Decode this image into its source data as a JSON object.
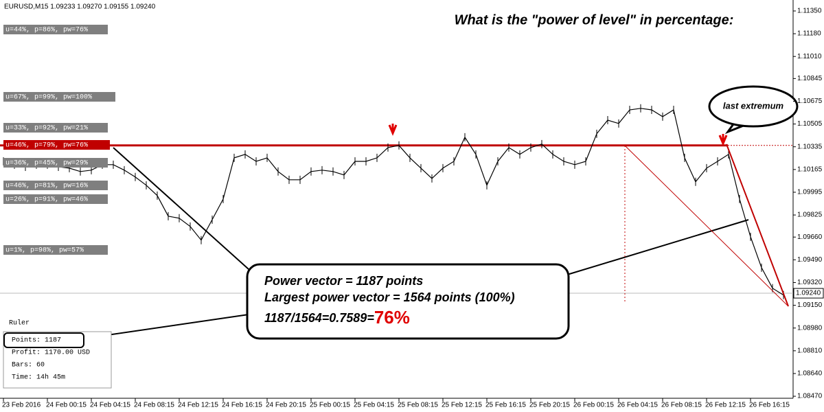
{
  "chart_data": {
    "type": "line",
    "title": "EURUSD,M15  1.09233 1.09270 1.09155 1.09240",
    "heading": "What is the \"power of level\" in percentage:",
    "categories": [
      "23 Feb 2016",
      null,
      null,
      null,
      "24 Feb 00:15",
      null,
      null,
      null,
      "24 Feb 04:15",
      null,
      null,
      null,
      "24 Feb 08:15",
      null,
      null,
      null,
      "24 Feb 12:15",
      null,
      null,
      null,
      "24 Feb 16:15",
      null,
      null,
      null,
      "24 Feb 20:15",
      null,
      null,
      null,
      "25 Feb 00:15",
      null,
      null,
      null,
      "25 Feb 04:15",
      null,
      null,
      null,
      "25 Feb 08:15",
      null,
      null,
      null,
      "25 Feb 12:15",
      null,
      null,
      null,
      "25 Feb 16:15",
      null,
      null,
      null,
      "25 Feb 20:15",
      null,
      null,
      null,
      "26 Feb 00:15",
      null,
      null,
      null,
      "26 Feb 04:15",
      null,
      null,
      null,
      "26 Feb 08:15",
      null,
      null,
      null,
      "26 Feb 12:15",
      null,
      null,
      null,
      "26 Feb 16:15",
      null,
      null,
      null
    ],
    "values": [
      1.10226,
      1.10201,
      1.10185,
      1.10201,
      1.10201,
      1.10185,
      1.10175,
      1.1015,
      1.1016,
      1.10201,
      1.10201,
      1.1016,
      1.10109,
      1.10047,
      1.0997,
      1.09816,
      1.09801,
      1.09739,
      1.09637,
      1.0979,
      1.09944,
      1.10252,
      1.10278,
      1.10226,
      1.10252,
      1.1015,
      1.10088,
      1.10088,
      1.1015,
      1.1016,
      1.1015,
      1.10124,
      1.10226,
      1.10226,
      1.10252,
      1.10329,
      1.10345,
      1.10252,
      1.10175,
      1.10098,
      1.10175,
      1.10226,
      1.10406,
      1.10278,
      1.10047,
      1.10226,
      1.10329,
      1.10278,
      1.10329,
      1.10355,
      1.10278,
      1.10226,
      1.10201,
      1.10226,
      1.10432,
      1.10534,
      1.10509,
      1.10611,
      1.10622,
      1.10611,
      1.1056,
      1.10611,
      1.10252,
      1.10073,
      1.10175,
      1.10226,
      1.10278,
      1.09944,
      1.09662,
      1.09431,
      1.09278,
      1.09226
    ],
    "color": "#000000",
    "ylim": [
      1.08455,
      1.11432
    ],
    "yticks": [
      {
        "value": 1.1135,
        "label": "1.11350"
      },
      {
        "value": 1.1118,
        "label": "1.11180"
      },
      {
        "value": 1.1101,
        "label": "1.11010"
      },
      {
        "value": 1.10845,
        "label": "1.10845"
      },
      {
        "value": 1.10675,
        "label": "1.10675"
      },
      {
        "value": 1.10505,
        "label": "1.10505"
      },
      {
        "value": 1.10335,
        "label": "1.10335"
      },
      {
        "value": 1.10165,
        "label": "1.10165"
      },
      {
        "value": 1.09995,
        "label": "1.09995"
      },
      {
        "value": 1.09825,
        "label": "1.09825"
      },
      {
        "value": 1.0966,
        "label": "1.09660"
      },
      {
        "value": 1.0949,
        "label": "1.09490"
      },
      {
        "value": 1.0932,
        "label": "1.09320"
      },
      {
        "value": 1.0915,
        "label": "1.09150"
      },
      {
        "value": 1.0898,
        "label": "1.08980"
      },
      {
        "value": 1.0881,
        "label": "1.08810"
      },
      {
        "value": 1.0864,
        "label": "1.08640"
      },
      {
        "value": 1.0847,
        "label": "1.08470"
      }
    ],
    "grid": false,
    "level": 1.10345,
    "level_color": "#c00000",
    "current_price": {
      "value": 1.0924,
      "label": "1.09240"
    },
    "level_labels": [
      "u=44%, p=86%, pw=76%",
      "u=67%, p=99%, pw=100%",
      "u=33%, p=92%, pw=21%",
      "u=46%, p=79%, pw=76%",
      "u=36%, p=45%, pw=29%",
      "u=46%, p=81%, pw=16%",
      "u=26%, p=91%, pw=46%",
      "u=1%, p=98%, pw=57%"
    ],
    "bubble": "last extremum",
    "callout": {
      "lines": [
        "Power vector = 1187 points",
        "Largest power vector = 1564 points (100%)"
      ],
      "ratio": "1187/1564=0.7589=",
      "percent": "76%"
    },
    "ruler": {
      "title": "Ruler",
      "rows": [
        "Points: 1187",
        "Profit: 1170.00 USD",
        "Bars: 60",
        "Time: 14h 45m"
      ]
    }
  }
}
